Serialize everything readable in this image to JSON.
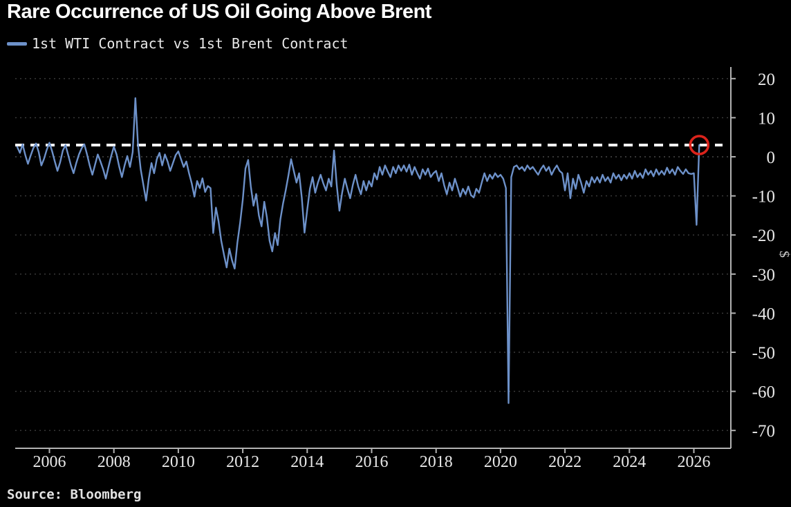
{
  "source_label": "Source: Bloomberg",
  "chart_data": {
    "type": "line",
    "title": "Rare Occurrence of US Oil Going Above Brent",
    "ylabel": "$",
    "xlabel": "",
    "legend_position": "top-left",
    "grid": "dotted-horizontal",
    "background": "#000000",
    "colors": {
      "line": "#6d91c9",
      "reference_line": "#ffffff",
      "annotation": "#da231b",
      "axis": "#b3b3b3",
      "tick_text": "#e8e8e8"
    },
    "xlim": [
      2004.95,
      2027.15
    ],
    "ylim": [
      -74,
      23
    ],
    "x_ticks": [
      2006,
      2008,
      2010,
      2012,
      2014,
      2016,
      2018,
      2020,
      2022,
      2024,
      2026
    ],
    "y_ticks": [
      20,
      10,
      0,
      -10,
      -20,
      -30,
      -40,
      -50,
      -60,
      -70
    ],
    "reference_line": {
      "value": 3.0,
      "style": "dashed"
    },
    "annotation": {
      "shape": "circle",
      "x": 2026.167,
      "y": 3.0,
      "meaning": "latest-point-above-zero"
    },
    "x": {
      "start": 2005.0,
      "step": 0.0833333,
      "unit": "year"
    },
    "series": [
      {
        "name": "1st WTI Contract vs 1st Brent Contract",
        "values": [
          2.5,
          1.0,
          3.2,
          0.5,
          -1.8,
          0.3,
          2.2,
          3.4,
          1.2,
          -2.2,
          -0.5,
          1.8,
          3.6,
          1.4,
          -1.2,
          -3.6,
          -1.4,
          1.6,
          3.0,
          0.4,
          -2.2,
          -4.2,
          -1.6,
          0.6,
          2.2,
          3.2,
          0.6,
          -2.2,
          -4.6,
          -2.0,
          0.6,
          -1.2,
          -3.2,
          -5.6,
          -2.6,
          0.2,
          2.6,
          0.6,
          -2.6,
          -5.2,
          -2.2,
          0.2,
          -2.6,
          1.2,
          15.0,
          3.0,
          -3.2,
          -7.2,
          -11.2,
          -5.6,
          -1.6,
          -4.2,
          -0.6,
          1.0,
          -2.2,
          0.6,
          -1.2,
          -3.6,
          -1.6,
          0.4,
          1.4,
          -0.6,
          -2.6,
          -1.2,
          -4.2,
          -6.8,
          -10.2,
          -6.2,
          -8.0,
          -5.5,
          -9.0,
          -7.5,
          -8.0,
          -19.5,
          -13.0,
          -16.5,
          -21.5,
          -25.0,
          -28.3,
          -23.5,
          -26.5,
          -28.6,
          -22.0,
          -17.0,
          -11.0,
          -3.0,
          -0.8,
          -7.5,
          -12.5,
          -9.5,
          -15.0,
          -17.8,
          -11.5,
          -15.5,
          -21.5,
          -24.2,
          -19.5,
          -22.6,
          -16.0,
          -12.0,
          -8.6,
          -4.8,
          -0.6,
          -3.6,
          -6.6,
          -4.2,
          -10.5,
          -19.4,
          -13.6,
          -8.2,
          -5.2,
          -9.2,
          -6.6,
          -4.6,
          -6.8,
          -8.6,
          -5.6,
          -7.6,
          1.6,
          -7.2,
          -13.8,
          -9.2,
          -5.6,
          -8.2,
          -10.6,
          -7.2,
          -4.6,
          -7.6,
          -9.6,
          -6.2,
          -8.6,
          -6.2,
          -7.6,
          -4.2,
          -5.8,
          -2.6,
          -4.6,
          -2.2,
          -3.8,
          -5.2,
          -2.6,
          -4.2,
          -2.2,
          -3.6,
          -2.2,
          -3.8,
          -2.0,
          -4.6,
          -2.6,
          -4.2,
          -5.6,
          -3.2,
          -4.6,
          -3.0,
          -5.2,
          -4.2,
          -3.6,
          -6.2,
          -4.2,
          -7.2,
          -9.6,
          -6.6,
          -8.6,
          -5.6,
          -7.8,
          -10.2,
          -8.2,
          -9.6,
          -7.6,
          -9.8,
          -10.4,
          -8.2,
          -9.2,
          -6.6,
          -4.2,
          -6.2,
          -4.6,
          -5.6,
          -4.2,
          -5.2,
          -4.6,
          -5.6,
          -8.0,
          -63.0,
          -5.2,
          -2.6,
          -2.2,
          -3.2,
          -2.6,
          -3.6,
          -2.2,
          -3.2,
          -2.6,
          -3.6,
          -4.6,
          -3.2,
          -2.2,
          -3.6,
          -2.6,
          -4.6,
          -3.2,
          -2.2,
          -3.6,
          -4.2,
          -8.6,
          -4.2,
          -10.6,
          -5.6,
          -8.2,
          -4.6,
          -6.6,
          -9.2,
          -6.2,
          -7.6,
          -5.2,
          -6.6,
          -5.2,
          -6.6,
          -4.6,
          -6.2,
          -5.2,
          -6.6,
          -4.2,
          -5.6,
          -4.6,
          -6.0,
          -4.6,
          -5.6,
          -4.2,
          -5.6,
          -3.6,
          -5.2,
          -4.2,
          -5.4,
          -3.2,
          -4.6,
          -3.6,
          -5.0,
          -3.2,
          -4.6,
          -3.6,
          -4.6,
          -2.8,
          -4.2,
          -3.2,
          -4.6,
          -2.6,
          -3.6,
          -4.4,
          -3.2,
          -4.2,
          -4.4,
          -4.2,
          -17.4,
          3.0
        ]
      }
    ]
  }
}
